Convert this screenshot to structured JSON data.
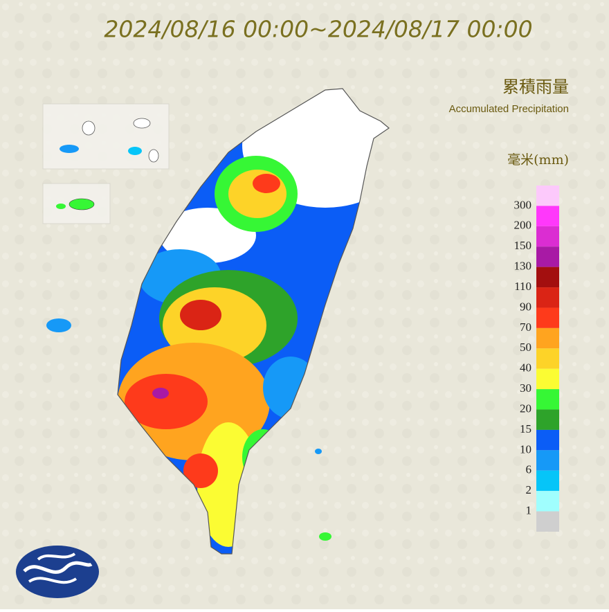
{
  "title": "2024/08/16 00:00~2024/08/17 00:00",
  "legend": {
    "title_zh": "累積雨量",
    "title_en": "Accumulated Precipitation",
    "unit": "毫米(mm)",
    "labels": [
      300,
      200,
      150,
      130,
      110,
      90,
      70,
      50,
      40,
      30,
      20,
      15,
      10,
      6,
      2,
      1
    ],
    "colors": [
      "#fcc9fb",
      "#ff38fb",
      "#db2dd2",
      "#a81aa5",
      "#a30f0f",
      "#da2415",
      "#fe3a1b",
      "#ffa41f",
      "#fdd328",
      "#fbfc33",
      "#36f735",
      "#2ea32a",
      "#0b5df6",
      "#1699f7",
      "#06c5f8",
      "#a0fefe",
      "#cfcfcf"
    ]
  }
}
